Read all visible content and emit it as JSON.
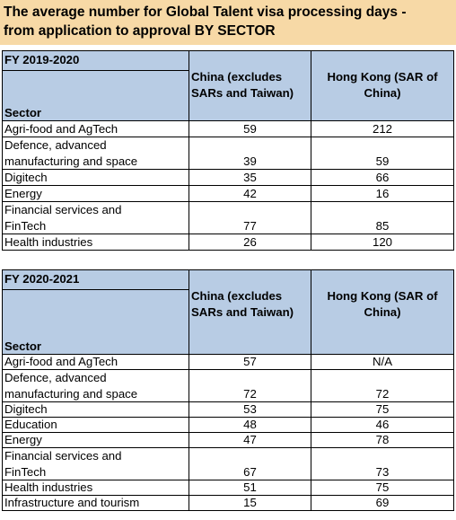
{
  "title": {
    "line1": "The average number for Global Talent visa processing days -",
    "line2": "from application to approval BY SECTOR"
  },
  "tables": [
    {
      "fy": "FY 2019-2020",
      "sector_header": "Sector",
      "china_header": "China (excludes SARs and Taiwan)",
      "hk_header": "Hong Kong (SAR of China)",
      "rows": [
        {
          "sector": "Agri-food and AgTech",
          "china": "59",
          "hk": "212"
        },
        {
          "sector_line1": "Defence, advanced",
          "sector_line2": "manufacturing and space",
          "china": "39",
          "hk": "59"
        },
        {
          "sector": "Digitech",
          "china": "35",
          "hk": "66"
        },
        {
          "sector": "Energy",
          "china": "42",
          "hk": "16"
        },
        {
          "sector_line1": "Financial services and",
          "sector_line2": "FinTech",
          "china": "77",
          "hk": "85"
        },
        {
          "sector": "Health industries",
          "china": "26",
          "hk": "120"
        }
      ]
    },
    {
      "fy": "FY 2020-2021",
      "sector_header": "Sector",
      "china_header": "China (excludes SARs and Taiwan)",
      "hk_header": "Hong Kong (SAR of China)",
      "rows": [
        {
          "sector": "Agri-food and AgTech",
          "china": "57",
          "hk": "N/A"
        },
        {
          "sector_line1": "Defence, advanced",
          "sector_line2": "manufacturing and space",
          "china": "72",
          "hk": "72"
        },
        {
          "sector": "Digitech",
          "china": "53",
          "hk": "75"
        },
        {
          "sector": "Education",
          "china": "48",
          "hk": "46"
        },
        {
          "sector": "Energy",
          "china": "47",
          "hk": "78"
        },
        {
          "sector_line1": "Financial services and",
          "sector_line2": "FinTech",
          "china": "67",
          "hk": "73"
        },
        {
          "sector": "Health industries",
          "china": "51",
          "hk": "75"
        },
        {
          "sector": "Infrastructure and tourism",
          "china": "15",
          "hk": "69"
        }
      ]
    }
  ]
}
